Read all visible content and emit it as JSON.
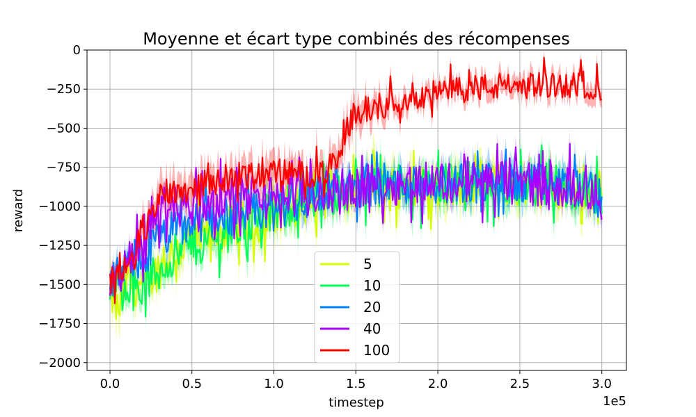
{
  "chart_data": {
    "type": "line",
    "title": "Moyenne et écart type combinés des récompenses",
    "xlabel": "timestep",
    "ylabel": "reward",
    "x_offset_label": "1e5",
    "xlim": [
      -0.14,
      3.15
    ],
    "ylim": [
      -2050,
      0
    ],
    "x_ticks": [
      0.0,
      0.5,
      1.0,
      1.5,
      2.0,
      2.5,
      3.0
    ],
    "x_tick_labels": [
      "0.0",
      "0.5",
      "1.0",
      "1.5",
      "2.0",
      "2.5",
      "3.0"
    ],
    "y_ticks": [
      0,
      -250,
      -500,
      -750,
      -1000,
      -1250,
      -1500,
      -1750,
      -2000
    ],
    "y_tick_labels": [
      "0",
      "−250",
      "−500",
      "−750",
      "−1000",
      "−1250",
      "−1500",
      "−1750",
      "−2000"
    ],
    "grid": true,
    "legend_position": "lower-center",
    "series": [
      {
        "name": "5",
        "color": "#d4ff00",
        "x": [
          0.0,
          0.05,
          0.1,
          0.15,
          0.2,
          0.25,
          0.3,
          0.35,
          0.4,
          0.45,
          0.5,
          0.6,
          0.7,
          0.8,
          0.9,
          1.0,
          1.1,
          1.2,
          1.3,
          1.4,
          1.5,
          1.6,
          1.7,
          1.8,
          1.9,
          2.0,
          2.1,
          2.2,
          2.3,
          2.4,
          2.5,
          2.6,
          2.7,
          2.8,
          2.9,
          3.0
        ],
        "values": [
          -1550,
          -1680,
          -1480,
          -1500,
          -1520,
          -1450,
          -1400,
          -1330,
          -1280,
          -1260,
          -1230,
          -1200,
          -1150,
          -1100,
          -1120,
          -1050,
          -1000,
          -980,
          -950,
          -920,
          -900,
          -870,
          -880,
          -860,
          -880,
          -870,
          -860,
          -850,
          -870,
          -860,
          -880,
          -870,
          -890,
          -900,
          -880,
          -1000
        ],
        "std": [
          100,
          130,
          90,
          80,
          80,
          80,
          80,
          80,
          80,
          80,
          90,
          90,
          100,
          100,
          100,
          100,
          100,
          100,
          100,
          100,
          100,
          100,
          100,
          100,
          100,
          100,
          100,
          100,
          100,
          100,
          100,
          100,
          100,
          100,
          100,
          100
        ]
      },
      {
        "name": "10",
        "color": "#00ff55",
        "x": [
          0.0,
          0.05,
          0.1,
          0.15,
          0.2,
          0.25,
          0.3,
          0.35,
          0.4,
          0.45,
          0.5,
          0.6,
          0.7,
          0.8,
          0.9,
          1.0,
          1.1,
          1.2,
          1.3,
          1.4,
          1.5,
          1.6,
          1.7,
          1.8,
          1.9,
          2.0,
          2.1,
          2.2,
          2.3,
          2.4,
          2.5,
          2.6,
          2.7,
          2.8,
          2.9,
          3.0
        ],
        "values": [
          -1530,
          -1520,
          -1470,
          -1500,
          -1530,
          -1470,
          -1420,
          -1350,
          -1310,
          -1280,
          -1250,
          -1220,
          -1170,
          -1120,
          -1100,
          -1040,
          -1000,
          -970,
          -940,
          -910,
          -890,
          -870,
          -870,
          -860,
          -870,
          -860,
          -860,
          -850,
          -860,
          -860,
          -870,
          -870,
          -880,
          -890,
          -880,
          -980
        ],
        "std": [
          60,
          70,
          70,
          70,
          70,
          70,
          70,
          70,
          70,
          80,
          80,
          80,
          90,
          90,
          90,
          90,
          90,
          90,
          90,
          90,
          90,
          90,
          90,
          90,
          90,
          90,
          90,
          90,
          90,
          90,
          90,
          90,
          90,
          90,
          90,
          90
        ]
      },
      {
        "name": "20",
        "color": "#0080ff",
        "x": [
          0.0,
          0.05,
          0.1,
          0.15,
          0.2,
          0.25,
          0.3,
          0.35,
          0.4,
          0.45,
          0.5,
          0.6,
          0.7,
          0.8,
          0.9,
          1.0,
          1.1,
          1.2,
          1.3,
          1.4,
          1.5,
          1.6,
          1.7,
          1.8,
          1.9,
          2.0,
          2.1,
          2.2,
          2.3,
          2.4,
          2.5,
          2.6,
          2.7,
          2.8,
          2.9,
          3.0
        ],
        "values": [
          -1520,
          -1450,
          -1400,
          -1380,
          -1330,
          -1260,
          -1220,
          -1180,
          -1150,
          -1130,
          -1120,
          -1080,
          -1060,
          -1040,
          -1050,
          -1020,
          -980,
          -960,
          -930,
          -900,
          -880,
          -860,
          -860,
          -850,
          -860,
          -850,
          -850,
          -840,
          -850,
          -850,
          -860,
          -860,
          -870,
          -880,
          -870,
          -970
        ],
        "std": [
          60,
          60,
          60,
          60,
          60,
          60,
          70,
          70,
          70,
          70,
          70,
          70,
          70,
          70,
          80,
          80,
          80,
          80,
          80,
          80,
          80,
          80,
          80,
          80,
          80,
          80,
          80,
          80,
          80,
          80,
          80,
          80,
          80,
          80,
          80,
          80
        ]
      },
      {
        "name": "40",
        "color": "#aa00ff",
        "x": [
          0.0,
          0.05,
          0.1,
          0.15,
          0.2,
          0.25,
          0.3,
          0.35,
          0.4,
          0.45,
          0.5,
          0.6,
          0.7,
          0.8,
          0.9,
          1.0,
          1.1,
          1.2,
          1.3,
          1.4,
          1.5,
          1.6,
          1.7,
          1.8,
          1.9,
          2.0,
          2.1,
          2.2,
          2.3,
          2.4,
          2.5,
          2.6,
          2.7,
          2.8,
          2.9,
          3.0
        ],
        "values": [
          -1510,
          -1430,
          -1380,
          -1320,
          -1240,
          -1120,
          -1020,
          -980,
          -1000,
          -1010,
          -1000,
          -980,
          -960,
          -940,
          -950,
          -940,
          -930,
          -920,
          -910,
          -900,
          -880,
          -860,
          -860,
          -850,
          -850,
          -840,
          -850,
          -840,
          -850,
          -840,
          -860,
          -860,
          -870,
          -870,
          -870,
          -960
        ],
        "std": [
          50,
          50,
          50,
          50,
          60,
          60,
          60,
          60,
          60,
          60,
          60,
          60,
          60,
          60,
          60,
          60,
          60,
          60,
          60,
          60,
          60,
          60,
          60,
          60,
          60,
          60,
          60,
          60,
          60,
          60,
          60,
          60,
          60,
          60,
          60,
          60
        ]
      },
      {
        "name": "100",
        "color": "#ff0000",
        "x": [
          0.0,
          0.05,
          0.1,
          0.15,
          0.2,
          0.25,
          0.3,
          0.35,
          0.4,
          0.45,
          0.5,
          0.6,
          0.7,
          0.8,
          0.9,
          1.0,
          1.1,
          1.2,
          1.3,
          1.4,
          1.45,
          1.5,
          1.6,
          1.7,
          1.8,
          1.9,
          2.0,
          2.1,
          2.2,
          2.3,
          2.4,
          2.5,
          2.6,
          2.7,
          2.8,
          2.9,
          3.0
        ],
        "values": [
          -1500,
          -1420,
          -1400,
          -1330,
          -1200,
          -1050,
          -950,
          -880,
          -900,
          -900,
          -880,
          -850,
          -820,
          -800,
          -810,
          -780,
          -780,
          -800,
          -780,
          -720,
          -480,
          -400,
          -370,
          -340,
          -300,
          -290,
          -280,
          -260,
          -240,
          -240,
          -230,
          -230,
          -220,
          -220,
          -220,
          -220,
          -230
        ],
        "std": [
          60,
          60,
          60,
          60,
          80,
          90,
          100,
          100,
          100,
          100,
          100,
          100,
          100,
          100,
          100,
          100,
          100,
          100,
          100,
          100,
          100,
          90,
          80,
          80,
          70,
          60,
          60,
          60,
          60,
          60,
          60,
          60,
          60,
          60,
          60,
          60,
          60
        ]
      }
    ]
  }
}
